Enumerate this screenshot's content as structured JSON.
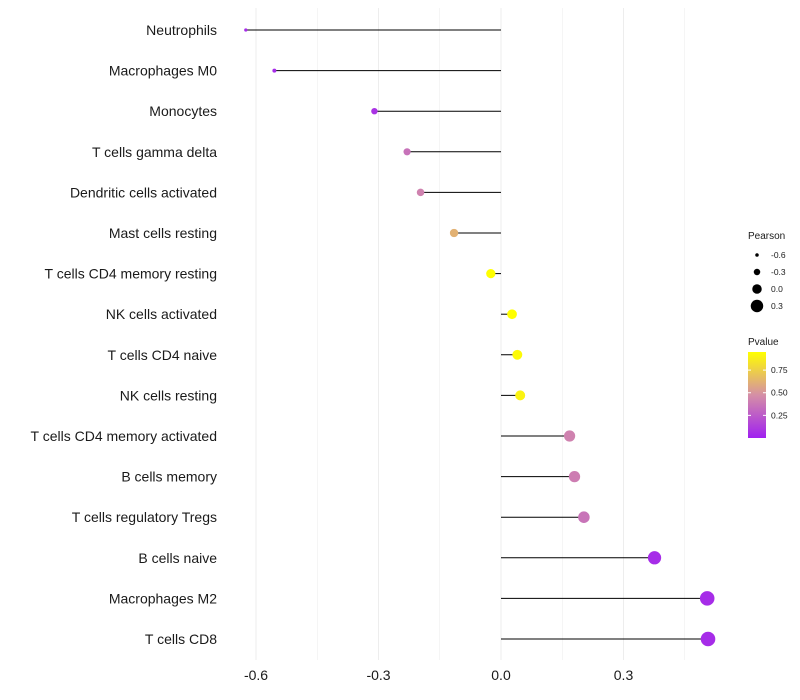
{
  "chart_data": {
    "type": "lollipop",
    "title": "",
    "xlabel": "",
    "ylabel": "",
    "xlim": [
      -0.65,
      0.52
    ],
    "baseline": 0.0,
    "x_ticks": [
      -0.6,
      -0.3,
      0.0,
      0.3
    ],
    "x_tick_labels": [
      "-0.6",
      "-0.3",
      "0.0",
      "0.3"
    ],
    "grid": true,
    "categories": [
      "Neutrophils",
      "Macrophages M0",
      "Monocytes",
      "T cells gamma delta",
      "Dendritic cells activated",
      "Mast cells resting",
      "T cells CD4 memory resting",
      "NK cells activated",
      "T cells CD4 naive",
      "NK cells resting",
      "T cells CD4 memory activated",
      "B cells memory",
      "T cells regulatory  Tregs",
      "B cells naive",
      "Macrophages M2",
      "T cells CD8"
    ],
    "pearson": [
      -0.625,
      -0.555,
      -0.31,
      -0.23,
      -0.197,
      -0.115,
      -0.025,
      0.027,
      0.04,
      0.047,
      0.168,
      0.18,
      0.203,
      0.376,
      0.505,
      0.507
    ],
    "pvalue": [
      0.05,
      0.05,
      0.08,
      0.35,
      0.42,
      0.62,
      0.97,
      0.95,
      0.93,
      0.9,
      0.42,
      0.4,
      0.36,
      0.05,
      0.05,
      0.05
    ],
    "legend": {
      "size": {
        "title": "Pearson",
        "values": [
          -0.6,
          -0.3,
          0.0,
          0.3
        ],
        "labels": [
          "-0.6",
          "-0.3",
          "0.0",
          "0.3"
        ]
      },
      "color": {
        "title": "Pvalue",
        "range": [
          0.0,
          0.95
        ],
        "ticks": [
          0.25,
          0.5,
          0.75
        ],
        "tick_labels": [
          "0.25",
          "0.50",
          "0.75"
        ],
        "low_color": "#a020f0",
        "mid_color": "#d58fa6",
        "high_color": "#ffff00"
      }
    },
    "colors": {
      "segment": "#000000",
      "grid": "#ebebeb",
      "text": "#1a1a1a"
    }
  }
}
